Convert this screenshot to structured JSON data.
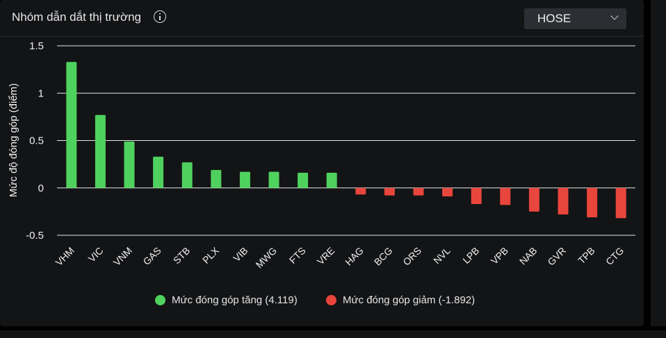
{
  "header": {
    "title": "Nhóm dẫn dắt thị trường",
    "info_icon": "info-circle-icon"
  },
  "exchange_select": {
    "value": "HOSE",
    "icon": "chevron-down-icon"
  },
  "colors": {
    "increase": "#4fd15e",
    "decrease": "#e8453c"
  },
  "legend": {
    "increase_label": "Mức đóng góp tăng (4.119)",
    "decrease_label": "Mức đóng góp giảm (-1.892)"
  },
  "chart_data": {
    "type": "bar",
    "title": "Nhóm dẫn dắt thị trường",
    "ylabel": "Mức độ đóng góp (điểm)",
    "xlabel": "",
    "ylim": [
      -0.5,
      1.5
    ],
    "yticks": [
      "1.5",
      "1",
      "0.5",
      "0",
      "-0.5"
    ],
    "grid": true,
    "legend_position": "bottom",
    "categories": [
      "VHM",
      "VIC",
      "VNM",
      "GAS",
      "STB",
      "PLX",
      "VIB",
      "MWG",
      "FTS",
      "VRE",
      "HAG",
      "BCG",
      "ORS",
      "NVL",
      "LPB",
      "VPB",
      "NAB",
      "GVR",
      "TPB",
      "CTG"
    ],
    "values": [
      1.33,
      0.77,
      0.49,
      0.33,
      0.27,
      0.19,
      0.17,
      0.17,
      0.16,
      0.16,
      -0.07,
      -0.08,
      -0.08,
      -0.09,
      -0.17,
      -0.18,
      -0.25,
      -0.28,
      -0.31,
      -0.32
    ],
    "series": [
      {
        "name": "Mức đóng góp tăng (4.119)"
      },
      {
        "name": "Mức đóng góp giảm (-1.892)"
      }
    ]
  }
}
